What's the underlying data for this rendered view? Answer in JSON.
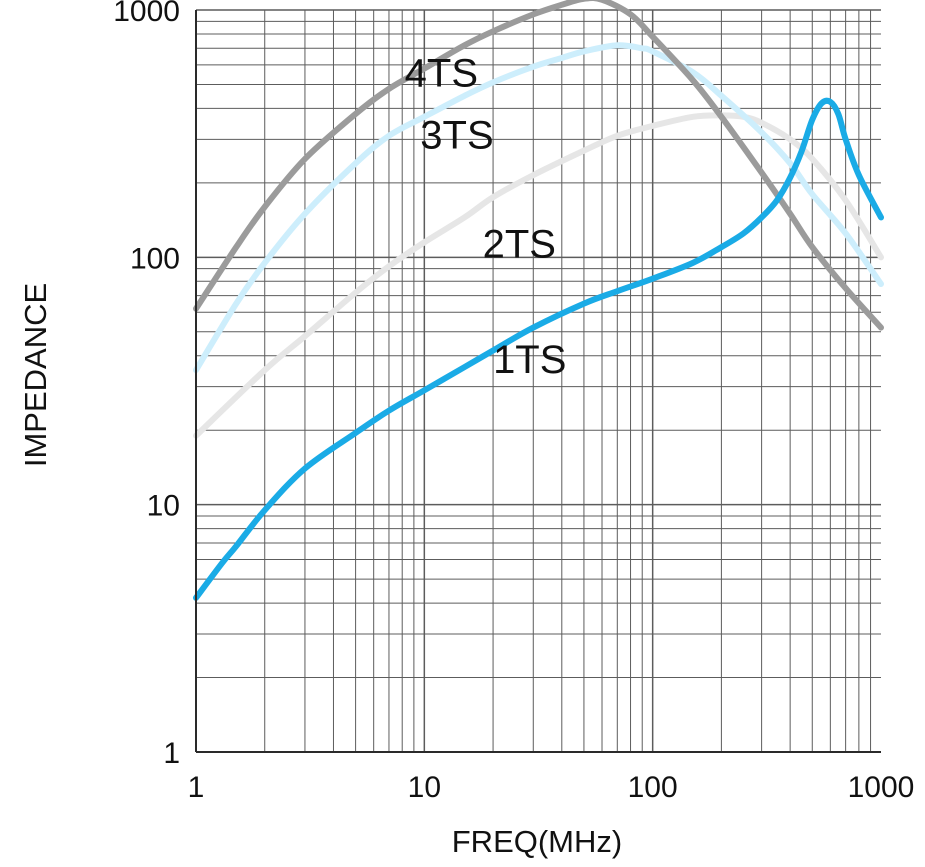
{
  "chart_data": {
    "type": "line",
    "title": "",
    "xlabel": "FREQ(MHz)",
    "ylabel": "IMPEDANCE",
    "x_scale": "log",
    "y_scale": "log",
    "xlim": [
      1,
      1000
    ],
    "ylim": [
      1,
      1000
    ],
    "grid": true,
    "x_ticks": [
      1,
      10,
      100,
      1000
    ],
    "x_tick_labels": [
      "1",
      "10",
      "100",
      "1000"
    ],
    "y_ticks": [
      1,
      10,
      100,
      1000
    ],
    "y_tick_labels": [
      "1",
      "10",
      "100",
      "1000"
    ],
    "colors": {
      "grid": "#5c5c5c",
      "axis": "#2a2a2a",
      "text": "#111111"
    },
    "series": [
      {
        "name": "4TS",
        "color": "#9b9b9b",
        "x": [
          1,
          1.5,
          2,
          3,
          5,
          7,
          10,
          15,
          20,
          30,
          40,
          50,
          60,
          80,
          100,
          150,
          200,
          300,
          400,
          500,
          700,
          1000
        ],
        "y": [
          62,
          110,
          160,
          250,
          380,
          480,
          580,
          720,
          820,
          960,
          1050,
          1110,
          1100,
          960,
          780,
          520,
          370,
          220,
          150,
          110,
          75,
          52
        ]
      },
      {
        "name": "3TS",
        "color": "#cdeefc",
        "x": [
          1,
          1.5,
          2,
          3,
          5,
          7,
          10,
          15,
          20,
          30,
          40,
          50,
          70,
          90,
          100,
          150,
          200,
          300,
          400,
          500,
          700,
          1000
        ],
        "y": [
          35,
          65,
          95,
          150,
          240,
          310,
          370,
          450,
          510,
          590,
          640,
          680,
          720,
          700,
          680,
          560,
          450,
          320,
          240,
          180,
          125,
          78
        ]
      },
      {
        "name": "2TS",
        "color": "#e6e6e6",
        "x": [
          1,
          2,
          3,
          5,
          7,
          10,
          15,
          20,
          30,
          50,
          70,
          100,
          150,
          200,
          250,
          300,
          400,
          500,
          700,
          1000
        ],
        "y": [
          19,
          35,
          48,
          72,
          92,
          115,
          145,
          175,
          215,
          270,
          310,
          340,
          370,
          375,
          370,
          350,
          300,
          250,
          170,
          100
        ]
      },
      {
        "name": "1TS",
        "color": "#1aabe6",
        "x": [
          1,
          1.3,
          1.5,
          2,
          3,
          5,
          7,
          10,
          15,
          20,
          30,
          50,
          70,
          100,
          150,
          200,
          250,
          300,
          350,
          400,
          450,
          500,
          550,
          600,
          650,
          700,
          800,
          1000
        ],
        "y": [
          4.2,
          5.8,
          6.8,
          9.5,
          14,
          19.5,
          24,
          29,
          36,
          42,
          52,
          65,
          73,
          82,
          95,
          110,
          125,
          145,
          170,
          210,
          270,
          360,
          420,
          425,
          380,
          300,
          215,
          145
        ]
      }
    ],
    "annotations": [
      {
        "text": "4TS",
        "x": 8.2,
        "y": 490
      },
      {
        "text": "3TS",
        "x": 9.6,
        "y": 275
      },
      {
        "text": "2TS",
        "x": 18,
        "y": 100
      },
      {
        "text": "1TS",
        "x": 20,
        "y": 34
      }
    ]
  }
}
